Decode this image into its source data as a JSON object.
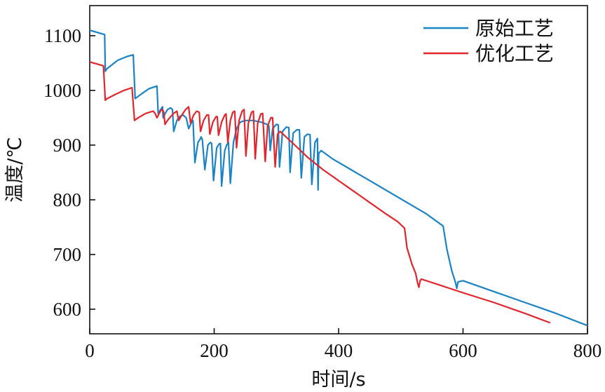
{
  "chart_data": {
    "type": "line",
    "title": "",
    "xlabel": "时间/s",
    "ylabel": "温度/℃",
    "xlim": [
      0,
      800
    ],
    "ylim": [
      555,
      1155
    ],
    "x_ticks": [
      0,
      200,
      400,
      600,
      800
    ],
    "y_ticks": [
      600,
      700,
      800,
      900,
      1000,
      1100
    ],
    "grid": false,
    "legend_position": "top-right",
    "series": [
      {
        "name": "原始工艺",
        "color": "#1a83c6",
        "points": [
          [
            0,
            1110
          ],
          [
            24,
            1102
          ],
          [
            25,
            1035
          ],
          [
            28,
            1040
          ],
          [
            45,
            1055
          ],
          [
            60,
            1062
          ],
          [
            70,
            1065
          ],
          [
            73,
            985
          ],
          [
            85,
            995
          ],
          [
            95,
            1003
          ],
          [
            108,
            1008
          ],
          [
            110,
            958
          ],
          [
            117,
            970
          ],
          [
            118,
            950
          ],
          [
            120,
            955
          ],
          [
            125,
            965
          ],
          [
            130,
            968
          ],
          [
            133,
            965
          ],
          [
            135,
            925
          ],
          [
            140,
            945
          ],
          [
            145,
            953
          ],
          [
            150,
            955
          ],
          [
            155,
            950
          ],
          [
            159,
            930
          ],
          [
            163,
            940
          ],
          [
            166,
            945
          ],
          [
            169,
            868
          ],
          [
            174,
            905
          ],
          [
            177,
            910
          ],
          [
            179,
            915
          ],
          [
            181,
            910
          ],
          [
            185,
            855
          ],
          [
            190,
            900
          ],
          [
            194,
            905
          ],
          [
            196,
            903
          ],
          [
            199,
            835
          ],
          [
            204,
            895
          ],
          [
            208,
            902
          ],
          [
            210,
            903
          ],
          [
            212,
            825
          ],
          [
            217,
            890
          ],
          [
            220,
            900
          ],
          [
            223,
            905
          ],
          [
            226,
            830
          ],
          [
            231,
            905
          ],
          [
            236,
            930
          ],
          [
            242,
            942
          ],
          [
            250,
            945
          ],
          [
            262,
            945
          ],
          [
            275,
            942
          ],
          [
            285,
            938
          ],
          [
            288,
            935
          ],
          [
            290,
            890
          ],
          [
            294,
            930
          ],
          [
            300,
            938
          ],
          [
            303,
            937
          ],
          [
            305,
            860
          ],
          [
            310,
            925
          ],
          [
            316,
            933
          ],
          [
            320,
            932
          ],
          [
            322,
            850
          ],
          [
            327,
            922
          ],
          [
            333,
            928
          ],
          [
            337,
            928
          ],
          [
            340,
            840
          ],
          [
            345,
            915
          ],
          [
            350,
            920
          ],
          [
            354,
            919
          ],
          [
            357,
            828
          ],
          [
            362,
            905
          ],
          [
            366,
            912
          ],
          [
            367,
            818
          ],
          [
            368,
            885
          ],
          [
            372,
            890
          ],
          [
            390,
            875
          ],
          [
            420,
            855
          ],
          [
            450,
            835
          ],
          [
            480,
            815
          ],
          [
            510,
            795
          ],
          [
            540,
            775
          ],
          [
            568,
            752
          ],
          [
            574,
            710
          ],
          [
            582,
            670
          ],
          [
            588,
            648
          ],
          [
            590,
            638
          ],
          [
            592,
            650
          ],
          [
            600,
            652
          ],
          [
            650,
            632
          ],
          [
            700,
            612
          ],
          [
            750,
            592
          ],
          [
            800,
            570
          ]
        ]
      },
      {
        "name": "优化工艺",
        "color": "#e0262c",
        "points": [
          [
            0,
            1052
          ],
          [
            22,
            1045
          ],
          [
            25,
            982
          ],
          [
            28,
            985
          ],
          [
            40,
            992
          ],
          [
            55,
            1000
          ],
          [
            68,
            1005
          ],
          [
            72,
            945
          ],
          [
            78,
            950
          ],
          [
            90,
            958
          ],
          [
            102,
            962
          ],
          [
            105,
            958
          ],
          [
            108,
            950
          ],
          [
            114,
            963
          ],
          [
            117,
            965
          ],
          [
            119,
            960
          ],
          [
            121,
            938
          ],
          [
            125,
            945
          ],
          [
            130,
            952
          ],
          [
            135,
            958
          ],
          [
            140,
            962
          ],
          [
            143,
            945
          ],
          [
            148,
            955
          ],
          [
            154,
            965
          ],
          [
            159,
            970
          ],
          [
            162,
            940
          ],
          [
            167,
            955
          ],
          [
            172,
            962
          ],
          [
            176,
            960
          ],
          [
            178,
            925
          ],
          [
            183,
            945
          ],
          [
            188,
            955
          ],
          [
            191,
            955
          ],
          [
            193,
            920
          ],
          [
            198,
            942
          ],
          [
            203,
            952
          ],
          [
            205,
            952
          ],
          [
            207,
            918
          ],
          [
            212,
            942
          ],
          [
            217,
            955
          ],
          [
            219,
            957
          ],
          [
            222,
            905
          ],
          [
            226,
            945
          ],
          [
            230,
            960
          ],
          [
            233,
            962
          ],
          [
            236,
            895
          ],
          [
            240,
            945
          ],
          [
            245,
            962
          ],
          [
            248,
            965
          ],
          [
            251,
            880
          ],
          [
            255,
            940
          ],
          [
            260,
            960
          ],
          [
            263,
            962
          ],
          [
            266,
            875
          ],
          [
            270,
            940
          ],
          [
            275,
            957
          ],
          [
            278,
            958
          ],
          [
            282,
            870
          ],
          [
            286,
            935
          ],
          [
            291,
            950
          ],
          [
            294,
            950
          ],
          [
            298,
            860
          ],
          [
            302,
            920
          ],
          [
            306,
            925
          ],
          [
            325,
            905
          ],
          [
            350,
            878
          ],
          [
            375,
            855
          ],
          [
            400,
            835
          ],
          [
            425,
            815
          ],
          [
            450,
            795
          ],
          [
            475,
            775
          ],
          [
            495,
            760
          ],
          [
            506,
            748
          ],
          [
            510,
            712
          ],
          [
            518,
            682
          ],
          [
            524,
            665
          ],
          [
            527,
            648
          ],
          [
            529,
            640
          ],
          [
            531,
            652
          ],
          [
            533,
            655
          ],
          [
            560,
            645
          ],
          [
            600,
            630
          ],
          [
            650,
            612
          ],
          [
            700,
            592
          ],
          [
            740,
            575
          ]
        ]
      }
    ]
  }
}
